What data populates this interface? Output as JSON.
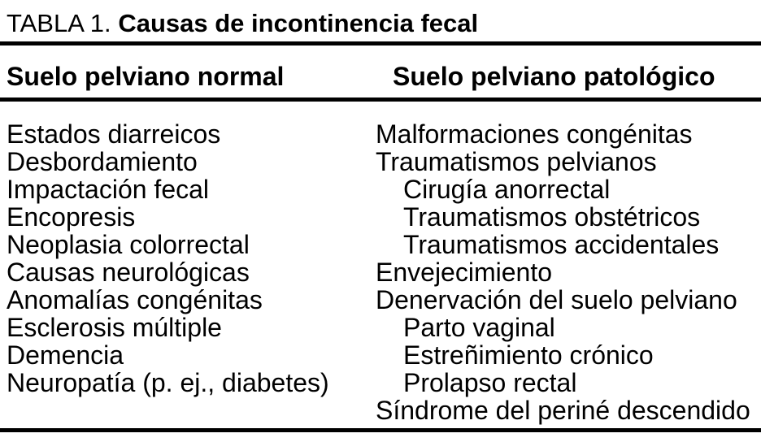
{
  "page": {
    "background": "#ffffff",
    "text_color": "#000000",
    "rule_color": "#000000"
  },
  "table": {
    "title_prefix": "TABLA 1.",
    "title": "Causas de incontinencia fecal",
    "columns": [
      {
        "header": "Suelo pelviano normal",
        "items": [
          {
            "text": "Estados diarreicos",
            "indent": 0
          },
          {
            "text": "Desbordamiento",
            "indent": 0
          },
          {
            "text": "Impactación fecal",
            "indent": 0
          },
          {
            "text": "Encopresis",
            "indent": 0
          },
          {
            "text": "Neoplasia colorrectal",
            "indent": 0
          },
          {
            "text": "Causas neurológicas",
            "indent": 0
          },
          {
            "text": "Anomalías congénitas",
            "indent": 0
          },
          {
            "text": "Esclerosis múltiple",
            "indent": 0
          },
          {
            "text": "Demencia",
            "indent": 0
          },
          {
            "text": "Neuropatía (p. ej., diabetes)",
            "indent": 0
          }
        ]
      },
      {
        "header": "Suelo pelviano patológico",
        "items": [
          {
            "text": "Malformaciones congénitas",
            "indent": 0
          },
          {
            "text": "Traumatismos pelvianos",
            "indent": 0
          },
          {
            "text": "Cirugía anorrectal",
            "indent": 1
          },
          {
            "text": "Traumatismos obstétricos",
            "indent": 1
          },
          {
            "text": "Traumatismos accidentales",
            "indent": 1
          },
          {
            "text": "Envejecimiento",
            "indent": 0
          },
          {
            "text": "Denervación del suelo pelviano",
            "indent": 0
          },
          {
            "text": "Parto vaginal",
            "indent": 1
          },
          {
            "text": "Estreñimiento crónico",
            "indent": 1
          },
          {
            "text": "Prolapso rectal",
            "indent": 1
          },
          {
            "text": "Síndrome del periné descendido",
            "indent": 0
          }
        ]
      }
    ]
  }
}
